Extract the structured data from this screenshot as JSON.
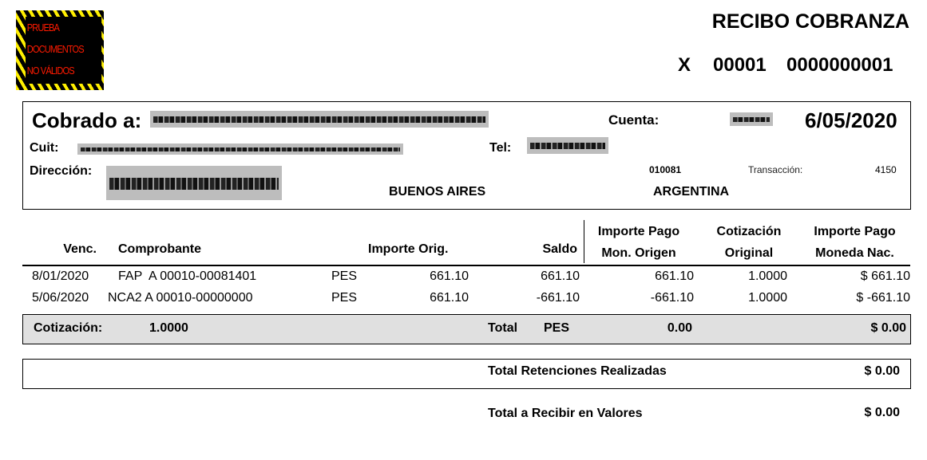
{
  "stamp": {
    "lines": [
      "PRUEBA",
      "DOCUMENTOS",
      "NO VÁLIDOS"
    ]
  },
  "header": {
    "title": "RECIBO COBRANZA",
    "letter": "X",
    "point_of_sale": "00001",
    "number": "0000000001"
  },
  "client": {
    "cobrado_label": "Cobrado a:",
    "cuenta_label": "Cuenta:",
    "date": "6/05/2020",
    "cuit_label": "Cuit:",
    "tel_label": "Tel:",
    "direccion_label": "Dirección:",
    "code": "010081",
    "transaccion_label": "Transacción:",
    "transaccion_value": "4150",
    "province": "BUENOS AIRES",
    "country": "ARGENTINA"
  },
  "table": {
    "headers": {
      "venc": "Venc.",
      "comprobante": "Comprobante",
      "importe_orig": "Importe Orig.",
      "saldo": "Saldo",
      "pago_mon_origen_1": "Importe Pago",
      "pago_mon_origen_2": "Mon. Origen",
      "cotizacion_1": "Cotización",
      "cotizacion_2": "Original",
      "pago_nac_1": "Importe Pago",
      "pago_nac_2": "Moneda Nac."
    },
    "rows": [
      {
        "venc": "8/01/2020",
        "comprobante": "FAP  A 00010-00081401",
        "moneda": "PES",
        "importe_orig": "661.10",
        "saldo": "661.10",
        "pago_origen": "661.10",
        "cotizacion": "1.0000",
        "pago_nac": "$ 661.10"
      },
      {
        "venc": "5/06/2020",
        "comprobante": "NCA2 A 00010-00000000",
        "moneda": "PES",
        "importe_orig": "661.10",
        "saldo": "-661.10",
        "pago_origen": "-661.10",
        "cotizacion": "1.0000",
        "pago_nac": "$ -661.10"
      }
    ]
  },
  "totals": {
    "cotizacion_label": "Cotización:",
    "cotizacion_value": "1.0000",
    "total_label": "Total",
    "total_currency": "PES",
    "total_origen": "0.00",
    "total_nac": "$ 0.00",
    "retenciones_label": "Total Retenciones Realizadas",
    "retenciones_value": "$ 0.00",
    "recibir_label": "Total a Recibir en Valores",
    "recibir_value": "$ 0.00"
  }
}
